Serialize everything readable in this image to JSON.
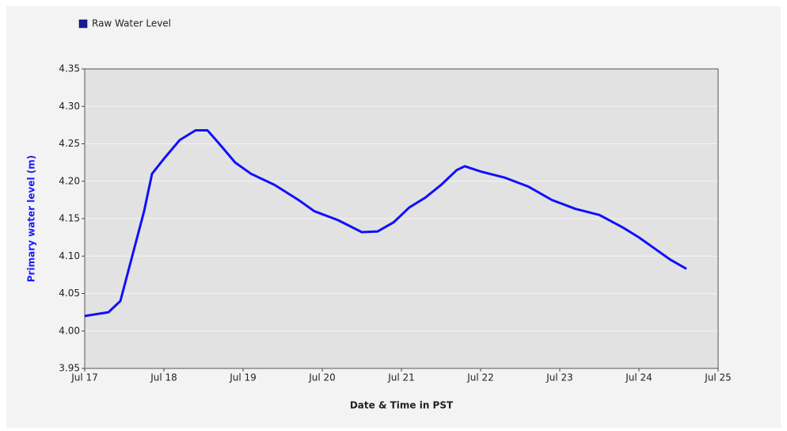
{
  "chart_data": {
    "type": "line",
    "x_label": "Date & Time in PST",
    "y_label": "Primary water level (m)",
    "legend_position": "top-left",
    "grid": true,
    "series": [
      {
        "name": "Raw Water Level",
        "color": "#1010ff",
        "legend_color": "#1a1aa0",
        "x": [
          17.0,
          17.3,
          17.45,
          17.6,
          17.75,
          17.85,
          18.0,
          18.2,
          18.4,
          18.55,
          18.7,
          18.9,
          19.1,
          19.4,
          19.7,
          19.9,
          20.2,
          20.5,
          20.7,
          20.9,
          21.1,
          21.3,
          21.5,
          21.7,
          21.8,
          22.0,
          22.3,
          22.6,
          22.9,
          23.2,
          23.5,
          23.8,
          24.0,
          24.2,
          24.4,
          24.6
        ],
        "values": [
          4.02,
          4.025,
          4.04,
          4.1,
          4.16,
          4.21,
          4.23,
          4.255,
          4.268,
          4.268,
          4.25,
          4.225,
          4.21,
          4.195,
          4.175,
          4.16,
          4.148,
          4.132,
          4.133,
          4.145,
          4.165,
          4.178,
          4.195,
          4.215,
          4.22,
          4.213,
          4.205,
          4.193,
          4.175,
          4.163,
          4.155,
          4.138,
          4.125,
          4.11,
          4.095,
          4.083
        ]
      }
    ],
    "xlim": [
      17,
      25
    ],
    "xticks": [
      {
        "value": 17,
        "label": "Jul 17"
      },
      {
        "value": 18,
        "label": "Jul 18"
      },
      {
        "value": 19,
        "label": "Jul 19"
      },
      {
        "value": 20,
        "label": "Jul 20"
      },
      {
        "value": 21,
        "label": "Jul 21"
      },
      {
        "value": 22,
        "label": "Jul 22"
      },
      {
        "value": 23,
        "label": "Jul 23"
      },
      {
        "value": 24,
        "label": "Jul 24"
      },
      {
        "value": 25,
        "label": "Jul 25"
      }
    ],
    "ylim": [
      3.95,
      4.35
    ],
    "yticks": [
      3.95,
      {
        "value": 4.0,
        "label": "4.00"
      },
      4.05,
      {
        "value": 4.1,
        "label": "4.10"
      },
      4.15,
      {
        "value": 4.2,
        "label": "4.20"
      },
      4.25,
      {
        "value": 4.3,
        "label": "4.30"
      },
      4.35
    ]
  }
}
